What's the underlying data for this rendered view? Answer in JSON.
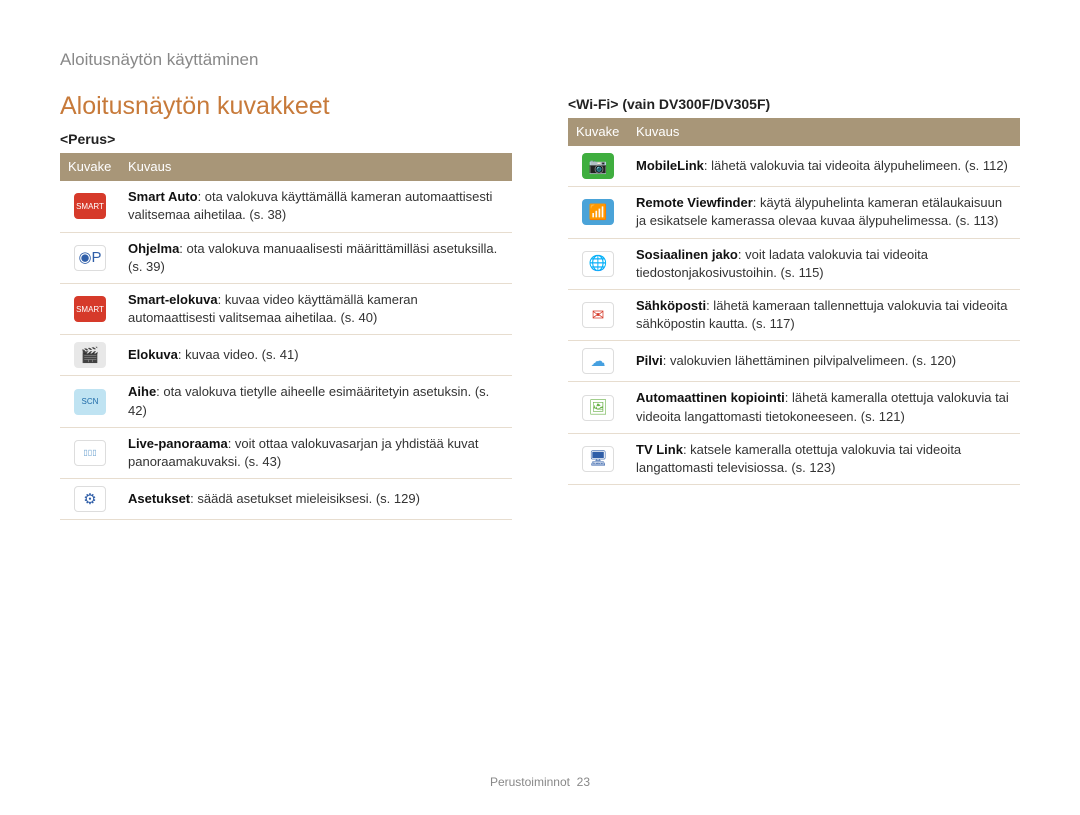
{
  "breadcrumb": "Aloitusnäytön käyttäminen",
  "page_title": "Aloitusnäytön kuvakkeet",
  "footer": {
    "label": "Perustoiminnot",
    "page": "23"
  },
  "left": {
    "section_label": "<Perus>",
    "header_icon": "Kuvake",
    "header_desc": "Kuvaus",
    "rows": [
      {
        "icon": "smart-auto-icon",
        "term": "Smart Auto",
        "rest": ": ota valokuva käyttämällä kameran automaattisesti valitsemaa aihetilaa. (s. 38)"
      },
      {
        "icon": "program-icon",
        "term": "Ohjelma",
        "rest": ": ota valokuva manuaalisesti määrittämilläsi asetuksilla. (s. 39)"
      },
      {
        "icon": "smart-movie-icon",
        "term": "Smart-elokuva",
        "rest": ": kuvaa video käyttämällä kameran automaattisesti valitsemaa aihetilaa. (s. 40)"
      },
      {
        "icon": "movie-icon",
        "term": "Elokuva",
        "rest": ": kuvaa video. (s. 41)"
      },
      {
        "icon": "scene-icon",
        "term": "Aihe",
        "rest": ": ota valokuva tietylle aiheelle esimääritetyin asetuksin. (s. 42)"
      },
      {
        "icon": "live-panorama-icon",
        "term": "Live-panoraama",
        "rest": ": voit ottaa valokuvasarjan ja yhdistää kuvat panoraamakuvaksi. (s. 43)"
      },
      {
        "icon": "settings-icon",
        "term": "Asetukset",
        "rest": ": säädä asetukset mieleisiksesi. (s. 129)"
      }
    ]
  },
  "right": {
    "section_label": "<Wi-Fi> (vain DV300F/DV305F)",
    "header_icon": "Kuvake",
    "header_desc": "Kuvaus",
    "rows": [
      {
        "icon": "mobilelink-icon",
        "term": "MobileLink",
        "rest": ": lähetä valokuvia tai videoita älypuhelimeen. (s. 112)"
      },
      {
        "icon": "remote-viewfinder-icon",
        "term": "Remote Viewfinder",
        "rest": ": käytä älypuhelinta kameran etälaukaisuun ja esikatsele kamerassa olevaa kuvaa älypuhelimessa. (s. 113)"
      },
      {
        "icon": "social-share-icon",
        "term": "Sosiaalinen jako",
        "rest": ": voit ladata valokuvia tai videoita tiedostonjakosivustoihin. (s. 115)"
      },
      {
        "icon": "email-icon",
        "term": "Sähköposti",
        "rest": ": lähetä kameraan tallennettuja valokuvia tai videoita sähköpostin kautta. (s. 117)"
      },
      {
        "icon": "cloud-icon",
        "term": "Pilvi",
        "rest": ": valokuvien lähettäminen pilvipalvelimeen. (s. 120)"
      },
      {
        "icon": "autobackup-icon",
        "term": "Automaattinen kopiointi",
        "rest": ": lähetä kameralla otettuja valokuvia tai videoita langattomasti tietokoneeseen. (s. 121)"
      },
      {
        "icon": "tvlink-icon",
        "term": "TV Link",
        "rest": ": katsele kameralla otettuja valokuvia tai videoita langattomasti televisiossa. (s. 123)"
      }
    ]
  },
  "icons": {
    "smart-auto-icon": {
      "bg": "#d63a2a",
      "fg": "#ffffff",
      "glyph": "SMART"
    },
    "program-icon": {
      "bg": "#ffffff",
      "fg": "#2f5ea8",
      "glyph": "◉P"
    },
    "smart-movie-icon": {
      "bg": "#d63a2a",
      "fg": "#ffffff",
      "glyph": "SMART"
    },
    "movie-icon": {
      "bg": "#e8e8e8",
      "fg": "#555555",
      "glyph": "🎬"
    },
    "scene-icon": {
      "bg": "#bfe3f2",
      "fg": "#1e6aa8",
      "glyph": "SCN"
    },
    "live-panorama-icon": {
      "bg": "#ffffff",
      "fg": "#6aa0cf",
      "glyph": "▯▯▯"
    },
    "settings-icon": {
      "bg": "#ffffff",
      "fg": "#2f5ea8",
      "glyph": "⚙"
    },
    "mobilelink-icon": {
      "bg": "#3fae3f",
      "fg": "#ffffff",
      "glyph": "📷"
    },
    "remote-viewfinder-icon": {
      "bg": "#4aa3d8",
      "fg": "#ffffff",
      "glyph": "📶"
    },
    "social-share-icon": {
      "bg": "#ffffff",
      "fg": "#2f6bd0",
      "glyph": "🌐"
    },
    "email-icon": {
      "bg": "#ffffff",
      "fg": "#d63a2a",
      "glyph": "✉"
    },
    "cloud-icon": {
      "bg": "#ffffff",
      "fg": "#46a0e0",
      "glyph": "☁"
    },
    "autobackup-icon": {
      "bg": "#ffffff",
      "fg": "#6bb24a",
      "glyph": "🖼"
    },
    "tvlink-icon": {
      "bg": "#ffffff",
      "fg": "#2f5ea8",
      "glyph": "🖥"
    }
  }
}
